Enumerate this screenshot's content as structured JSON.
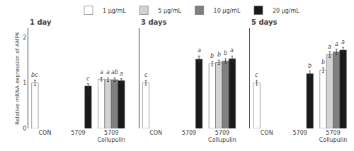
{
  "chart_data": [
    {
      "type": "bar",
      "title": "1 day",
      "ylabel": "Relative mRNA expression of AMPK",
      "categories": [
        "CON",
        "5709",
        "5709\nCollupulin"
      ],
      "series": [
        {
          "name": "1 µg/mL",
          "color": "#ffffff",
          "values": [
            1.0,
            null,
            1.08
          ],
          "errors": [
            0.06,
            null,
            0.04
          ],
          "letters": [
            "bc",
            null,
            "a"
          ]
        },
        {
          "name": "5 µg/mL",
          "color": "#d3d3d3",
          "values": [
            null,
            null,
            1.07
          ],
          "errors": [
            null,
            null,
            0.04
          ],
          "letters": [
            null,
            null,
            "a"
          ]
        },
        {
          "name": "10 µg/mL",
          "color": "#808080",
          "values": [
            null,
            null,
            1.07
          ],
          "errors": [
            null,
            null,
            0.04
          ],
          "letters": [
            null,
            null,
            "ab"
          ]
        },
        {
          "name": "20 µg/mL",
          "color": "#1a1a1a",
          "values": [
            null,
            0.93,
            1.05
          ],
          "errors": [
            null,
            0.05,
            0.04
          ],
          "letters": [
            null,
            "c",
            "a"
          ]
        }
      ],
      "ylim": [
        0,
        2.2
      ],
      "yticks": [
        0,
        1,
        2
      ],
      "grid": false,
      "legend": "top"
    },
    {
      "type": "bar",
      "title": "3 days",
      "categories": [
        "CON",
        "5709",
        "5709\nCollupulin"
      ],
      "series": [
        {
          "name": "1 µg/mL",
          "color": "#ffffff",
          "values": [
            1.0,
            null,
            1.42
          ],
          "errors": [
            0.05,
            null,
            0.05
          ],
          "letters": [
            "c",
            null,
            "b"
          ]
        },
        {
          "name": "5 µg/mL",
          "color": "#d3d3d3",
          "values": [
            null,
            null,
            1.45
          ],
          "errors": [
            null,
            null,
            0.05
          ],
          "letters": [
            null,
            null,
            "b"
          ]
        },
        {
          "name": "10 µg/mL",
          "color": "#808080",
          "values": [
            null,
            null,
            1.48
          ],
          "errors": [
            null,
            null,
            0.05
          ],
          "letters": [
            null,
            null,
            "b"
          ]
        },
        {
          "name": "20 µg/mL",
          "color": "#1a1a1a",
          "values": [
            null,
            1.52,
            1.53
          ],
          "errors": [
            null,
            0.07,
            0.06
          ],
          "letters": [
            null,
            "a",
            "a"
          ]
        }
      ],
      "ylim": [
        0,
        2.2
      ],
      "yticks": [
        0,
        1,
        2
      ],
      "grid": false,
      "legend": "top",
      "tick_labels": "x"
    },
    {
      "type": "bar",
      "title": "5 days",
      "categories": [
        "CON",
        "5709",
        "5709\nCollupulin"
      ],
      "series": [
        {
          "name": "1 µg/mL",
          "color": "#ffffff",
          "values": [
            1.0,
            null,
            1.28
          ],
          "errors": [
            0.05,
            null,
            0.05
          ],
          "letters": [
            "c",
            null,
            "b"
          ]
        },
        {
          "name": "5 µg/mL",
          "color": "#d3d3d3",
          "values": [
            null,
            null,
            1.62
          ],
          "errors": [
            null,
            null,
            0.06
          ],
          "letters": [
            null,
            null,
            "a"
          ]
        },
        {
          "name": "10 µg/mL",
          "color": "#808080",
          "values": [
            null,
            null,
            1.68
          ],
          "errors": [
            null,
            null,
            0.06
          ],
          "letters": [
            null,
            null,
            "a"
          ]
        },
        {
          "name": "20 µg/mL",
          "color": "#1a1a1a",
          "values": [
            null,
            1.2,
            1.72
          ],
          "errors": [
            null,
            0.06,
            0.06
          ],
          "letters": [
            null,
            "b",
            "a"
          ]
        }
      ],
      "ylim": [
        0,
        2.2
      ],
      "yticks": [
        0,
        1,
        2
      ],
      "grid": false,
      "legend": "top",
      "tick_labels": "x"
    }
  ]
}
